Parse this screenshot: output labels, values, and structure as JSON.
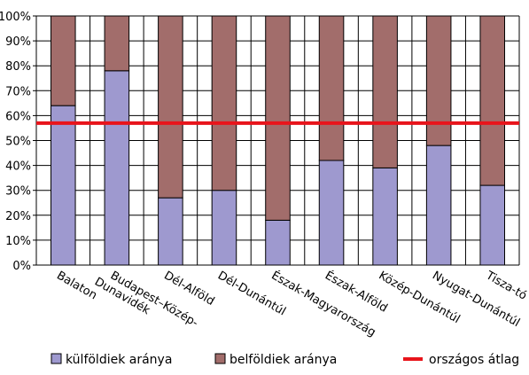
{
  "chart_data": {
    "type": "bar",
    "stacked": true,
    "categories": [
      "Balaton",
      "Budapest–Közép-Dunavidék",
      "Dél-Alföld",
      "Dél-Dunántúl",
      "Észak-Magyarország",
      "Észak-Alföld",
      "Közép-Dunántúl",
      "Nyugat-Dunántúl",
      "Tisza-tó"
    ],
    "category_lines": [
      [
        "Balaton"
      ],
      [
        "Budapest–Közép-",
        "Dunavidék"
      ],
      [
        "Dél-Alföld"
      ],
      [
        "Dél-Dunántúl"
      ],
      [
        "Észak-Magyarország"
      ],
      [
        "Észak-Alföld"
      ],
      [
        "Közép-Dunántúl"
      ],
      [
        "Nyugat-Dunántúl"
      ],
      [
        "Tisza-tó"
      ]
    ],
    "series": [
      {
        "name": "külföldiek aránya",
        "color": "#9e99cf",
        "values": [
          64,
          78,
          27,
          30,
          18,
          42,
          39,
          48,
          32
        ]
      },
      {
        "name": "belföldiek aránya",
        "color": "#a26d6b",
        "values": [
          36,
          22,
          73,
          70,
          82,
          58,
          61,
          52,
          68
        ]
      }
    ],
    "reference_line": {
      "name": "országos átlag",
      "value": 57,
      "color": "#e8141b"
    },
    "ylim": [
      0,
      100
    ],
    "y_ticks": [
      "0%",
      "10%",
      "20%",
      "30%",
      "40%",
      "50%",
      "60%",
      "70%",
      "80%",
      "90%",
      "100%"
    ],
    "grid": true,
    "legend": "bottom",
    "title": "",
    "xlabel": "",
    "ylabel": ""
  }
}
